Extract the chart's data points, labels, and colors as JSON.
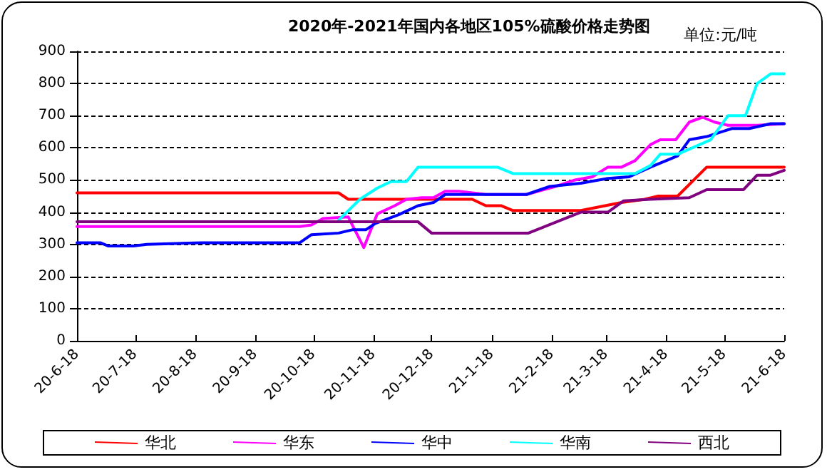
{
  "chart_data": {
    "type": "line",
    "title": "2020年-2021年国内各地区105%硫酸价格走势图",
    "subtitle": "单位:元/吨",
    "xlim": [
      "2020-06-18",
      "2021-06-18"
    ],
    "xticks": [
      {
        "value": "2020-06-18",
        "label": "20-6-18"
      },
      {
        "value": "2020-07-18",
        "label": "20-7-18"
      },
      {
        "value": "2020-08-18",
        "label": "20-8-18"
      },
      {
        "value": "2020-09-18",
        "label": "20-9-18"
      },
      {
        "value": "2020-10-18",
        "label": "20-10-18"
      },
      {
        "value": "2020-11-18",
        "label": "20-11-18"
      },
      {
        "value": "2020-12-18",
        "label": "20-12-18"
      },
      {
        "value": "2021-01-18",
        "label": "21-1-18"
      },
      {
        "value": "2021-02-18",
        "label": "21-2-18"
      },
      {
        "value": "2021-03-18",
        "label": "21-3-18"
      },
      {
        "value": "2021-04-18",
        "label": "21-4-18"
      },
      {
        "value": "2021-05-18",
        "label": "21-5-18"
      },
      {
        "value": "2021-06-18",
        "label": "21-6-18"
      }
    ],
    "ylim": [
      0,
      900
    ],
    "yticks": [
      0,
      100,
      200,
      300,
      400,
      500,
      600,
      700,
      800,
      900
    ],
    "grid": "y",
    "legend": "bottom",
    "marker": "none",
    "line_style": "solid",
    "series": [
      {
        "name": "华北",
        "color": "#ff0000",
        "x": [
          "2020-06-18",
          "2020-10-31",
          "2020-11-05",
          "2021-01-08",
          "2021-01-15",
          "2021-01-23",
          "2021-01-29",
          "2021-03-05",
          "2021-03-26",
          "2021-04-07",
          "2021-04-14",
          "2021-04-24",
          "2021-05-09",
          "2021-06-18"
        ],
        "values": [
          460,
          460,
          440,
          440,
          420,
          420,
          405,
          405,
          430,
          440,
          450,
          450,
          540,
          540
        ]
      },
      {
        "name": "华东",
        "color": "#ff00ff",
        "x": [
          "2020-06-18",
          "2020-10-11",
          "2020-10-17",
          "2020-10-23",
          "2020-11-05",
          "2020-11-13",
          "2020-11-20",
          "2020-11-29",
          "2020-12-05",
          "2020-12-13",
          "2020-12-19",
          "2020-12-25",
          "2021-01-01",
          "2021-01-15",
          "2021-02-05",
          "2021-02-20",
          "2021-03-02",
          "2021-03-11",
          "2021-03-19",
          "2021-03-26",
          "2021-04-02",
          "2021-04-10",
          "2021-04-15",
          "2021-04-23",
          "2021-04-30",
          "2021-05-07",
          "2021-05-13",
          "2021-05-20",
          "2021-06-04",
          "2021-06-18"
        ],
        "values": [
          355,
          355,
          360,
          380,
          385,
          290,
          395,
          420,
          440,
          445,
          445,
          465,
          465,
          455,
          455,
          480,
          500,
          510,
          540,
          540,
          560,
          610,
          625,
          625,
          680,
          695,
          680,
          670,
          670,
          675
        ]
      },
      {
        "name": "华中",
        "color": "#0000ff",
        "x": [
          "2020-06-18",
          "2020-06-30",
          "2020-07-04",
          "2020-07-17",
          "2020-07-24",
          "2020-08-21",
          "2020-10-11",
          "2020-10-17",
          "2020-10-31",
          "2020-11-07",
          "2020-11-14",
          "2020-11-19",
          "2020-12-01",
          "2020-12-11",
          "2020-12-19",
          "2020-12-25",
          "2021-02-05",
          "2021-02-17",
          "2021-03-05",
          "2021-03-19",
          "2021-03-30",
          "2021-04-10",
          "2021-04-24",
          "2021-04-30",
          "2021-05-09",
          "2021-05-22",
          "2021-05-31",
          "2021-06-11",
          "2021-06-18"
        ],
        "values": [
          305,
          305,
          295,
          295,
          300,
          305,
          305,
          330,
          335,
          345,
          345,
          365,
          392,
          420,
          430,
          455,
          455,
          480,
          490,
          505,
          510,
          540,
          575,
          625,
          635,
          660,
          660,
          675,
          675
        ]
      },
      {
        "name": "华南",
        "color": "#00ffff",
        "x": [
          "2020-10-31",
          "2020-11-11",
          "2020-11-20",
          "2020-11-27",
          "2020-12-05",
          "2020-12-11",
          "2021-01-21",
          "2021-01-29",
          "2021-04-02",
          "2021-04-10",
          "2021-04-15",
          "2021-04-24",
          "2021-05-11",
          "2021-05-20",
          "2021-05-29",
          "2021-06-04",
          "2021-06-11",
          "2021-06-18"
        ],
        "values": [
          375,
          440,
          475,
          495,
          495,
          540,
          540,
          520,
          520,
          545,
          580,
          580,
          625,
          700,
          700,
          800,
          830,
          830
        ]
      },
      {
        "name": "西北",
        "color": "#800080",
        "x": [
          "2020-06-18",
          "2020-12-11",
          "2020-12-18",
          "2021-02-06",
          "2021-03-05",
          "2021-03-19",
          "2021-03-27",
          "2021-04-10",
          "2021-04-30",
          "2021-05-09",
          "2021-05-28",
          "2021-06-04",
          "2021-06-11",
          "2021-06-18"
        ],
        "values": [
          370,
          370,
          335,
          335,
          400,
          400,
          435,
          440,
          445,
          470,
          470,
          515,
          515,
          530
        ]
      }
    ]
  }
}
